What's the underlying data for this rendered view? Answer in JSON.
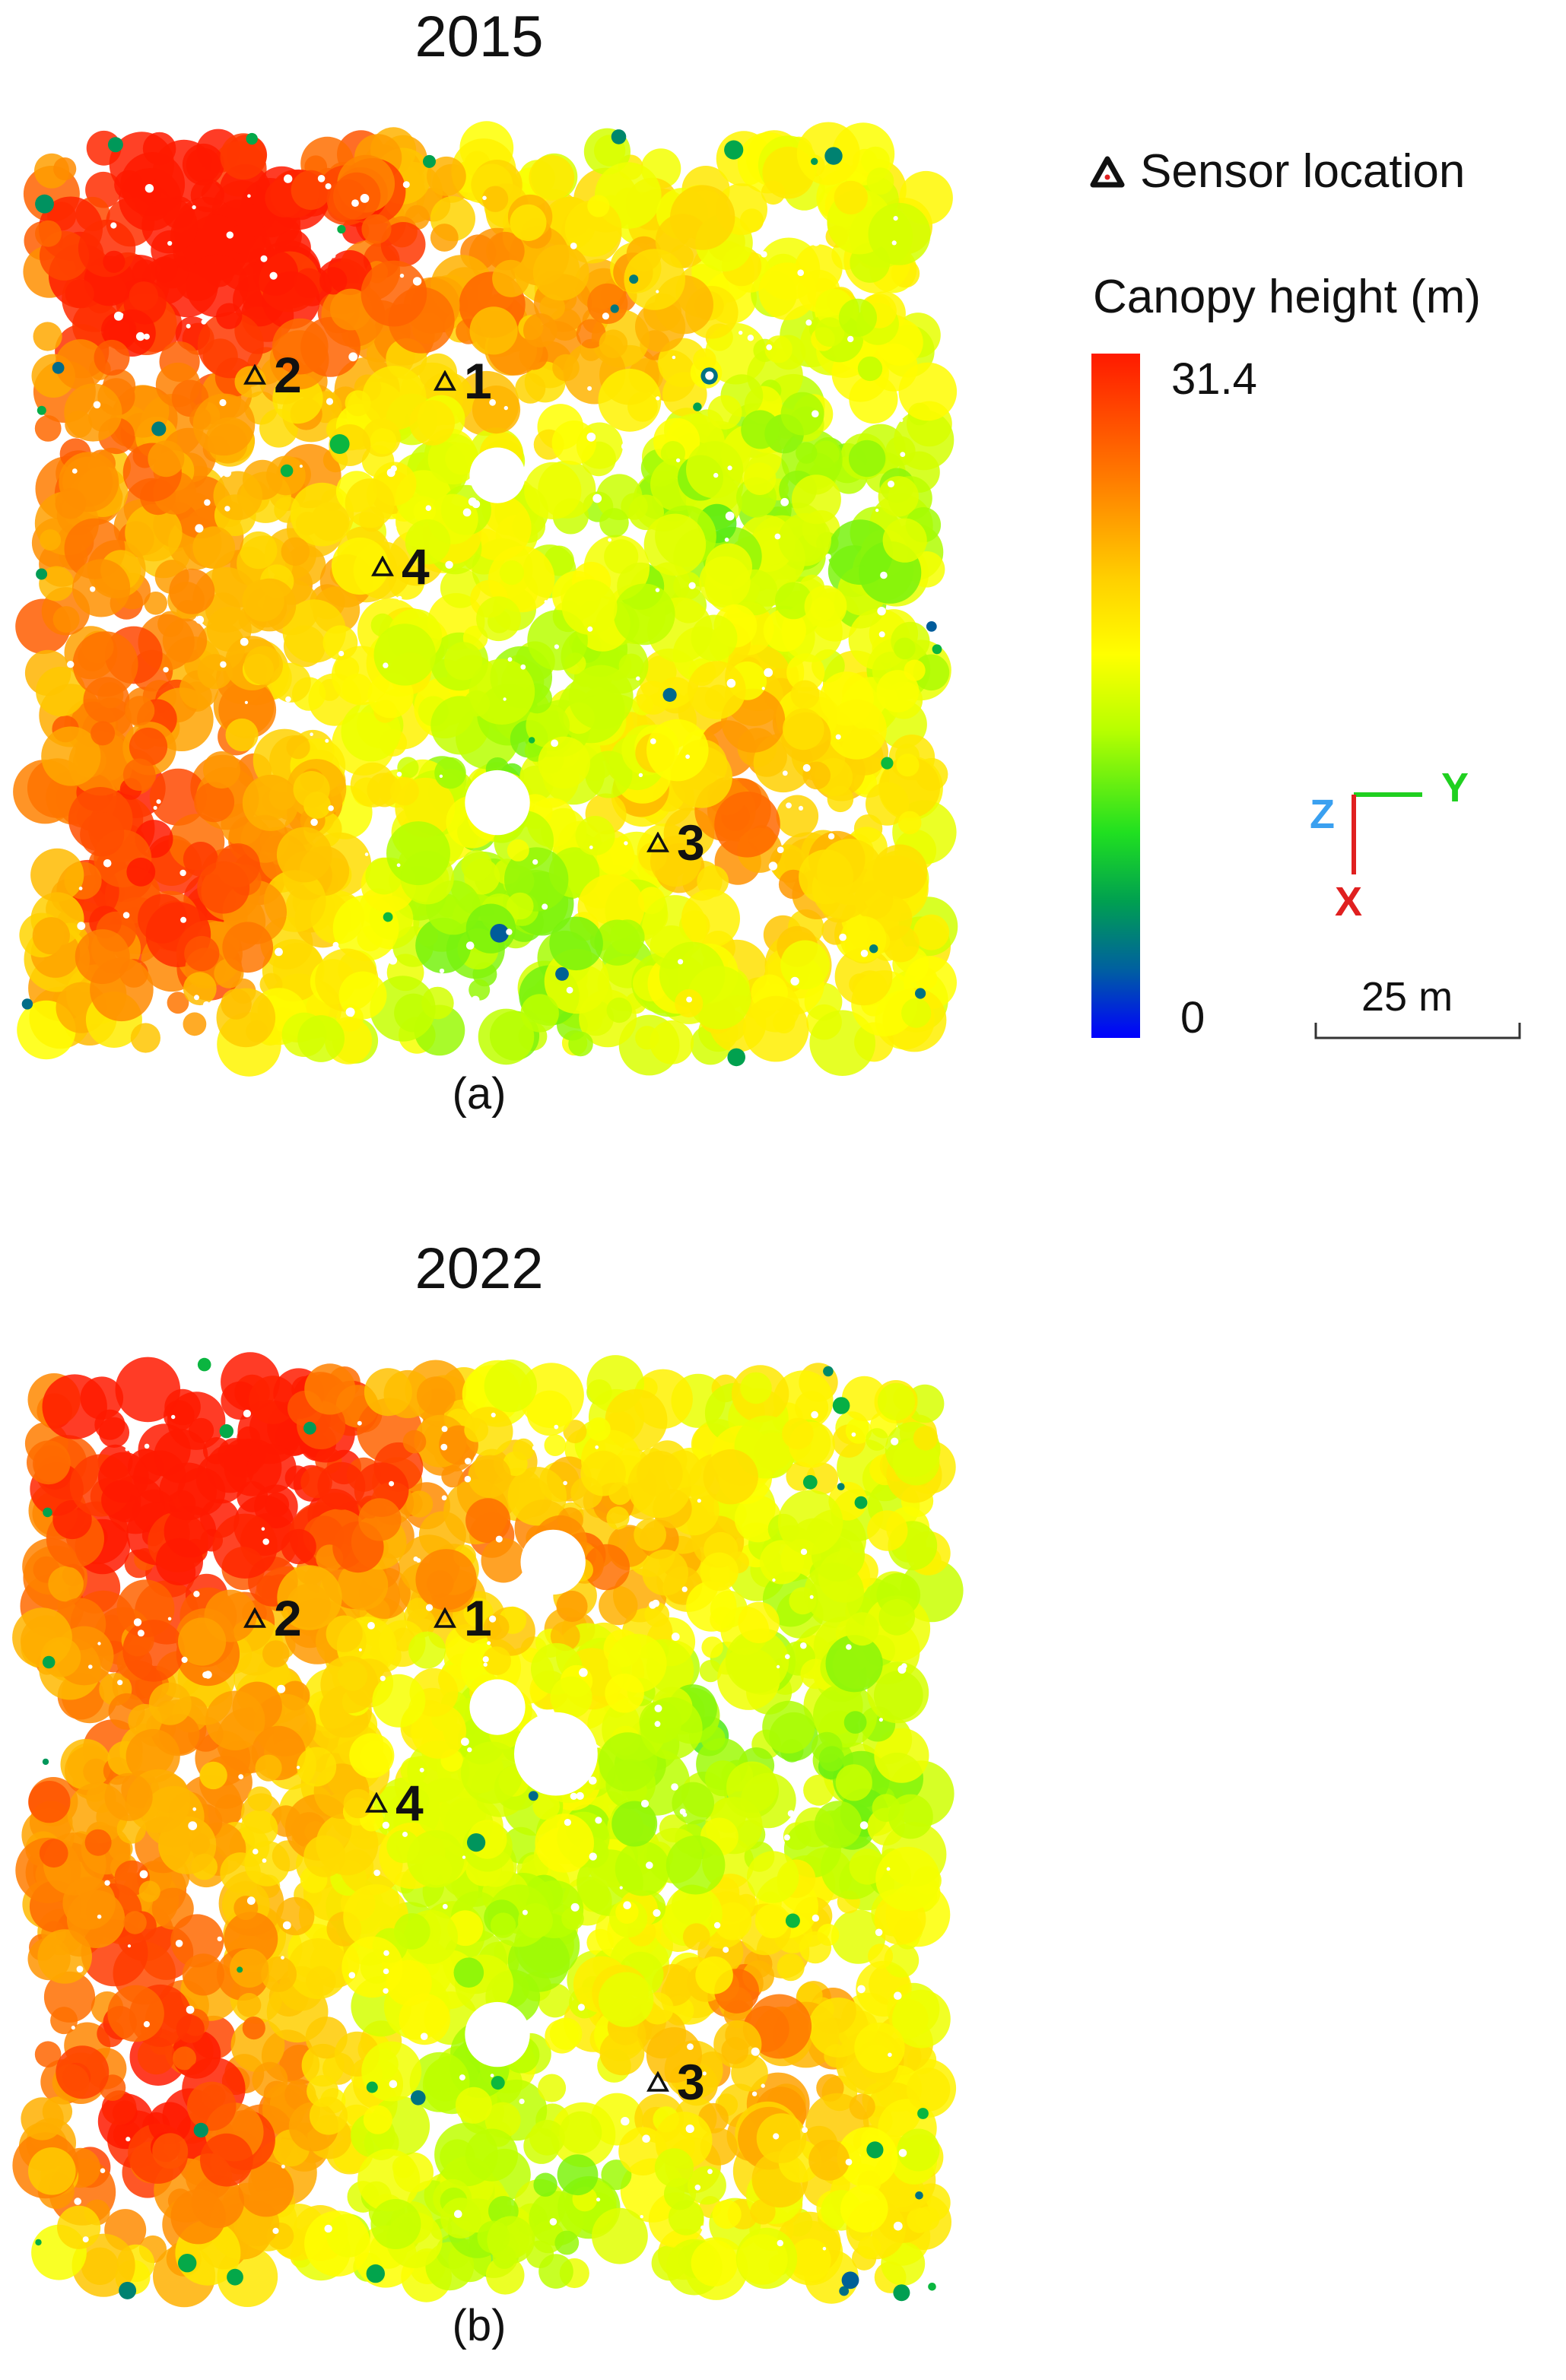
{
  "panels": [
    {
      "year": "2015",
      "caption": "(a)",
      "sensors": [
        {
          "id": "1",
          "hole": false
        },
        {
          "id": "2",
          "hole": false
        },
        {
          "id": "3",
          "hole": false
        },
        {
          "id": "4",
          "hole": false
        }
      ]
    },
    {
      "year": "2022",
      "caption": "(b)",
      "sensors": [
        {
          "id": "1",
          "hole": true
        },
        {
          "id": "2",
          "hole": true
        },
        {
          "id": "3",
          "hole": false
        },
        {
          "id": "4",
          "hole": false
        }
      ]
    }
  ],
  "legend": {
    "sensor_label": "Sensor location",
    "colorbar_title": "Canopy height (m)",
    "max": "31.4",
    "min": "0",
    "colors": [
      "#0000ff",
      "#00a050",
      "#20e020",
      "#b8ff00",
      "#ffff00",
      "#ffd000",
      "#ff7a00",
      "#ff1a00"
    ]
  },
  "axes": {
    "x": "X",
    "y": "Y",
    "z": "Z",
    "x_color": "#e02020",
    "y_color": "#20d020",
    "z_color": "#3aa0f0"
  },
  "scalebar": {
    "label": "25 m"
  }
}
